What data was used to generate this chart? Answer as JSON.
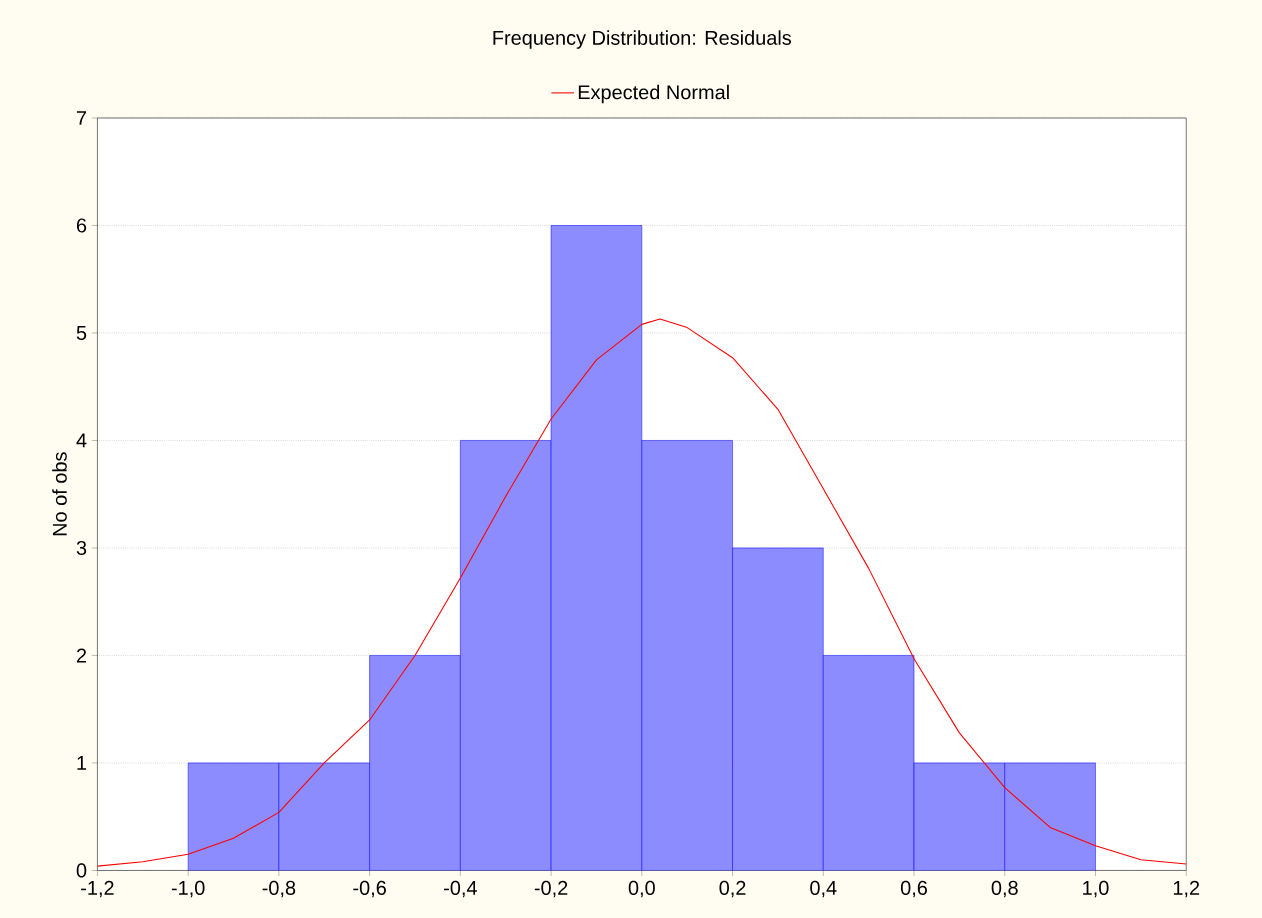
{
  "chart_data": {
    "type": "histogram",
    "title": "Frequency Distribution: Residuals",
    "ylabel": "No of obs",
    "bins": [
      -1.0,
      -0.8,
      -0.6,
      -0.4,
      -0.2,
      0.0,
      0.2,
      0.4,
      0.6,
      0.8,
      1.0
    ],
    "values": [
      1,
      1,
      2,
      4,
      6,
      4,
      3,
      2,
      1,
      1
    ],
    "color": "#8c8cff",
    "series": [
      {
        "name": "Expected Normal",
        "type": "line",
        "color": "#ff0000",
        "x": [
          -1.2,
          -1.1,
          -1.0,
          -0.9,
          -0.8,
          -0.7,
          -0.6,
          -0.5,
          -0.4,
          -0.3,
          -0.2,
          -0.1,
          0.0,
          0.04,
          0.1,
          0.2,
          0.3,
          0.4,
          0.5,
          0.6,
          0.7,
          0.8,
          0.9,
          1.0,
          1.1,
          1.2
        ],
        "values": [
          0.04,
          0.08,
          0.15,
          0.3,
          0.54,
          1.0,
          1.4,
          2.0,
          2.72,
          3.48,
          4.2,
          4.75,
          5.08,
          5.13,
          5.05,
          4.77,
          4.29,
          3.55,
          2.81,
          1.97,
          1.28,
          0.77,
          0.4,
          0.23,
          0.1,
          0.06
        ]
      }
    ],
    "xlim": [
      -1.2,
      1.2
    ],
    "ylim": [
      0,
      7
    ],
    "xticks": [
      {
        "value": -1.2,
        "label": "-1,2"
      },
      {
        "value": -1.0,
        "label": "-1,0"
      },
      {
        "value": -0.8,
        "label": "-0,8"
      },
      {
        "value": -0.6,
        "label": "-0,6"
      },
      {
        "value": -0.4,
        "label": "-0,4"
      },
      {
        "value": -0.2,
        "label": "-0,2"
      },
      {
        "value": 0.0,
        "label": "0,0"
      },
      {
        "value": 0.2,
        "label": "0,2"
      },
      {
        "value": 0.4,
        "label": "0,4"
      },
      {
        "value": 0.6,
        "label": "0,6"
      },
      {
        "value": 0.8,
        "label": "0,8"
      },
      {
        "value": 1.0,
        "label": "1,0"
      },
      {
        "value": 1.2,
        "label": "1,2"
      }
    ],
    "yticks": [
      0,
      1,
      2,
      3,
      4,
      5,
      6,
      7
    ],
    "grid": "y",
    "legend": "top"
  }
}
